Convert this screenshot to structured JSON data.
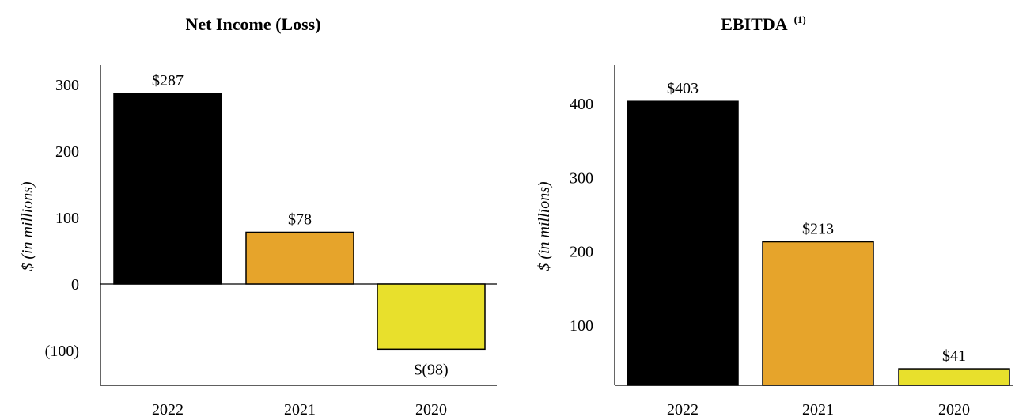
{
  "chart_data": [
    {
      "type": "bar",
      "title": "Net Income (Loss)",
      "title_superscript": "",
      "ylabel": "$ (in millions)",
      "categories": [
        "2022",
        "2021",
        "2020"
      ],
      "values": [
        287,
        78,
        -98
      ],
      "data_labels": [
        "$287",
        "$78",
        "$(98)"
      ],
      "colors": [
        "#000000",
        "#E6A42B",
        "#E8E02C"
      ],
      "ylim": [
        -150,
        330
      ],
      "yticks": [
        300,
        200,
        100,
        0,
        -100
      ],
      "ytick_labels": [
        "300",
        "200",
        "100",
        "0",
        "(100)"
      ],
      "grid": false
    },
    {
      "type": "bar",
      "title": "EBITDA",
      "title_superscript": "(1)",
      "ylabel": "$ (in millions)",
      "categories": [
        "2022",
        "2021",
        "2020"
      ],
      "values": [
        403,
        213,
        41
      ],
      "data_labels": [
        "$403",
        "$213",
        "$41"
      ],
      "colors": [
        "#000000",
        "#E6A42B",
        "#E8E02C"
      ],
      "ylim": [
        20,
        450
      ],
      "yticks": [
        400,
        300,
        200,
        100
      ],
      "ytick_labels": [
        "400",
        "300",
        "200",
        "100"
      ],
      "grid": false
    }
  ]
}
